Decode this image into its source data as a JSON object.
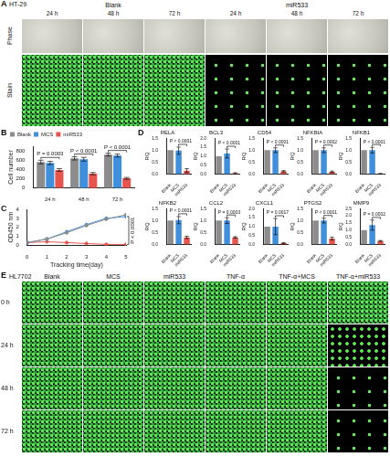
{
  "chart_data": [
    {
      "type": "bar",
      "panel": "B",
      "ylabel": "Cell number",
      "categories": [
        "24 h",
        "48 h",
        "72 h"
      ],
      "series": [
        {
          "name": "Blank",
          "color": "#8c8c8c",
          "values": [
            560,
            640,
            720
          ],
          "errors": [
            40,
            35,
            30
          ]
        },
        {
          "name": "MCS",
          "color": "#3f8fdc",
          "values": [
            540,
            620,
            700
          ],
          "errors": [
            35,
            40,
            30
          ]
        },
        {
          "name": "miR533",
          "color": "#e8554e",
          "values": [
            390,
            310,
            210
          ],
          "errors": [
            30,
            25,
            20
          ]
        }
      ],
      "annotations": [
        {
          "text": "P = 0.0003",
          "category": "24 h",
          "between": [
            "Blank",
            "miR533"
          ]
        },
        {
          "text": "P < 0.0001",
          "category": "48 h",
          "between": [
            "Blank",
            "miR533"
          ]
        },
        {
          "text": "P < 0.0001",
          "category": "72 h",
          "between": [
            "Blank",
            "miR533"
          ]
        }
      ],
      "ylim": [
        0,
        900
      ],
      "yticks": [
        0,
        200,
        400,
        600,
        800
      ],
      "grid": false,
      "legend": "top"
    },
    {
      "type": "line",
      "panel": "C",
      "xlabel": "Tracking time(day)",
      "ylabel": "OD450 nm",
      "x": [
        0,
        1,
        2,
        3,
        4,
        5
      ],
      "series": [
        {
          "name": "Blank",
          "color": "#8c8c8c",
          "values": [
            0.3,
            0.7,
            1.4,
            2.2,
            2.9,
            3.4
          ]
        },
        {
          "name": "MCS",
          "color": "#3f8fdc",
          "values": [
            0.3,
            0.7,
            1.5,
            2.3,
            3.0,
            3.2
          ]
        },
        {
          "name": "miR533",
          "color": "#e8554e",
          "values": [
            0.3,
            0.4,
            0.3,
            0.2,
            0.1,
            0.1
          ]
        }
      ],
      "marker": "circle",
      "annotation": {
        "text": "P < 0.0001",
        "between": [
          "MCS",
          "miR533"
        ]
      },
      "xlim": [
        0,
        5
      ],
      "xticks": [
        0,
        1,
        2,
        3,
        4,
        5
      ],
      "ylim": [
        0,
        4
      ],
      "yticks": [
        0,
        1,
        2,
        3,
        4
      ],
      "grid": false
    },
    {
      "type": "bar",
      "panel": "D",
      "title": "RELA",
      "ylabel": "RQ",
      "categories": [
        "Blank",
        "MCS",
        "miR533"
      ],
      "values": [
        1,
        0.98,
        0.15
      ],
      "errors": [
        null,
        0.15,
        0.08
      ],
      "colors": [
        "#8c8c8c",
        "#3f8fdc",
        "#e8554e"
      ],
      "annotation": {
        "text": "P < 0.0001",
        "between": [
          "MCS",
          "miR533"
        ]
      },
      "ylim": [
        0,
        1.5
      ],
      "yticks": [
        {
          "value": 0,
          "label": "0.0"
        },
        0.5,
        {
          "value": 1,
          "label": "1.0"
        },
        1.5
      ],
      "grid": false
    },
    {
      "type": "bar",
      "title": "BCL3",
      "ylabel": "RQ",
      "categories": [
        "Blank",
        "MCS",
        "miR533"
      ],
      "values": [
        1,
        1.15,
        0.05
      ],
      "errors": [
        null,
        0.25,
        0.03
      ],
      "colors": [
        "#8c8c8c",
        "#3f8fdc",
        "#e8554e"
      ],
      "annotation": {
        "text": "P < 0.0001",
        "between": [
          "MCS",
          "miR533"
        ]
      },
      "ylim": [
        0,
        2
      ],
      "yticks": [
        {
          "value": 0,
          "label": "0.0"
        },
        0.5,
        {
          "value": 1,
          "label": "1.0"
        },
        1.5,
        {
          "value": 2,
          "label": "2.0"
        }
      ],
      "grid": false
    },
    {
      "type": "bar",
      "title": "CD54",
      "ylabel": "RQ",
      "categories": [
        "Blank",
        "MCS",
        "miR533"
      ],
      "values": [
        1,
        1.0,
        0.12
      ],
      "errors": [
        null,
        0.1,
        0.03
      ],
      "colors": [
        "#8c8c8c",
        "#3f8fdc",
        "#e8554e"
      ],
      "annotation": {
        "text": "P < 0.0001",
        "between": [
          "MCS",
          "miR533"
        ]
      },
      "ylim": [
        0,
        1.5
      ],
      "yticks": [
        {
          "value": 0,
          "label": "0.0"
        },
        0.5,
        {
          "value": 1,
          "label": "1.0"
        },
        1.5
      ],
      "grid": false
    },
    {
      "type": "bar",
      "title": "NFKBIA",
      "ylabel": "RQ",
      "categories": [
        "Blank",
        "MCS",
        "miR533"
      ],
      "values": [
        1,
        1.0,
        0.1
      ],
      "errors": [
        null,
        0.1,
        0.03
      ],
      "colors": [
        "#8c8c8c",
        "#3f8fdc",
        "#e8554e"
      ],
      "annotation": {
        "text": "P = 0.0002",
        "between": [
          "MCS",
          "miR533"
        ]
      },
      "ylim": [
        0,
        1.5
      ],
      "yticks": [
        {
          "value": 0,
          "label": "0.0"
        },
        0.5,
        {
          "value": 1,
          "label": "1.0"
        },
        1.5
      ],
      "grid": false
    },
    {
      "type": "bar",
      "title": "NFKB1",
      "ylabel": "RQ",
      "categories": [
        "Blank",
        "MCS",
        "miR533"
      ],
      "values": [
        1,
        1.0,
        0.02
      ],
      "errors": [
        null,
        0.12,
        0.01
      ],
      "colors": [
        "#8c8c8c",
        "#3f8fdc",
        "#e8554e"
      ],
      "annotation": {
        "text": "P < 0.0001",
        "between": [
          "MCS",
          "miR533"
        ]
      },
      "ylim": [
        0,
        1.5
      ],
      "yticks": [
        {
          "value": 0,
          "label": "0.0"
        },
        0.5,
        {
          "value": 1,
          "label": "1.0"
        },
        1.5
      ],
      "grid": false
    },
    {
      "type": "bar",
      "title": "NFKB2",
      "ylabel": "RQ",
      "categories": [
        "Blank",
        "MCS",
        "miR533"
      ],
      "values": [
        1,
        1.02,
        0.3
      ],
      "errors": [
        null,
        0.15,
        0.05
      ],
      "colors": [
        "#8c8c8c",
        "#3f8fdc",
        "#e8554e"
      ],
      "annotation": {
        "text": "P < 0.0001",
        "between": [
          "MCS",
          "miR533"
        ]
      },
      "ylim": [
        0,
        1.5
      ],
      "yticks": [
        {
          "value": 0,
          "label": "0.0"
        },
        0.5,
        {
          "value": 1,
          "label": "1.0"
        },
        1.5
      ],
      "grid": false
    },
    {
      "type": "bar",
      "title": "CCL2",
      "ylabel": "RQ",
      "categories": [
        "Blank",
        "MCS",
        "miR533"
      ],
      "values": [
        1,
        1.0,
        0.3
      ],
      "errors": [
        null,
        0.12,
        0.03
      ],
      "colors": [
        "#8c8c8c",
        "#3f8fdc",
        "#e8554e"
      ],
      "annotation": {
        "text": "P = 0.0003",
        "between": [
          "MCS",
          "miR533"
        ]
      },
      "ylim": [
        0,
        1.5
      ],
      "yticks": [
        {
          "value": 0,
          "label": "0.0"
        },
        0.5,
        {
          "value": 1,
          "label": "1.0"
        },
        1.5
      ],
      "grid": false
    },
    {
      "type": "bar",
      "title": "CXCL1",
      "ylabel": "RQ",
      "categories": [
        "Blank",
        "MCS",
        "miR533"
      ],
      "values": [
        1,
        1.0,
        0.08
      ],
      "errors": [
        null,
        0.45,
        0.03
      ],
      "colors": [
        "#8c8c8c",
        "#3f8fdc",
        "#e8554e"
      ],
      "annotation": {
        "text": "P = 0.0017",
        "between": [
          "MCS",
          "miR533"
        ]
      },
      "ylim": [
        0,
        2
      ],
      "yticks": [
        {
          "value": 0,
          "label": "0.0"
        },
        0.5,
        {
          "value": 1,
          "label": "1.0"
        },
        1.5,
        {
          "value": 2,
          "label": "2.0"
        }
      ],
      "grid": false
    },
    {
      "type": "bar",
      "title": "PTGS2",
      "ylabel": "RQ",
      "categories": [
        "Blank",
        "MCS",
        "miR533"
      ],
      "values": [
        1,
        1.0,
        0.25
      ],
      "errors": [
        null,
        0.1,
        0.06
      ],
      "colors": [
        "#8c8c8c",
        "#3f8fdc",
        "#e8554e"
      ],
      "annotation": {
        "text": "P < 0.0001",
        "between": [
          "MCS",
          "miR533"
        ]
      },
      "ylim": [
        0,
        1.5
      ],
      "yticks": [
        {
          "value": 0,
          "label": "0.0"
        },
        0.5,
        {
          "value": 1,
          "label": "1.0"
        },
        1.5
      ],
      "grid": false
    },
    {
      "type": "bar",
      "title": "MMP9",
      "ylabel": "RQ",
      "categories": [
        "Blank",
        "MCS",
        "miR533"
      ],
      "values": [
        1,
        1.35,
        0.25
      ],
      "errors": [
        null,
        0.35,
        0.03
      ],
      "colors": [
        "#8c8c8c",
        "#3f8fdc",
        "#e8554e"
      ],
      "annotation": {
        "text": "P = 0.0002",
        "between": [
          "MCS",
          "miR533"
        ]
      },
      "ylim": [
        0,
        2.5
      ],
      "yticks": [
        {
          "value": 0,
          "label": "0.0"
        },
        0.5,
        {
          "value": 1,
          "label": "1.0"
        },
        1.5,
        {
          "value": 2,
          "label": "2.0"
        },
        2.5
      ],
      "grid": false
    }
  ],
  "image_panels": [
    {
      "panel": "A",
      "cell_line": "HT-29",
      "groups": [
        {
          "name": "Blank",
          "columns": [
            "24 h",
            "48 h",
            "72 h"
          ]
        },
        {
          "name": "miR533",
          "columns": [
            "24 h",
            "48 h",
            "72 h"
          ]
        }
      ],
      "rows": [
        "Phase",
        "Stain"
      ]
    },
    {
      "panel": "E",
      "cell_line": "HL7702",
      "columns": [
        "Blank",
        "MCS",
        "miR533",
        "TNF-α",
        "TNF-α+MCS",
        "TNF-α+miR533"
      ],
      "rows": [
        "0 h",
        "24 h",
        "48 h",
        "72 h"
      ]
    }
  ]
}
